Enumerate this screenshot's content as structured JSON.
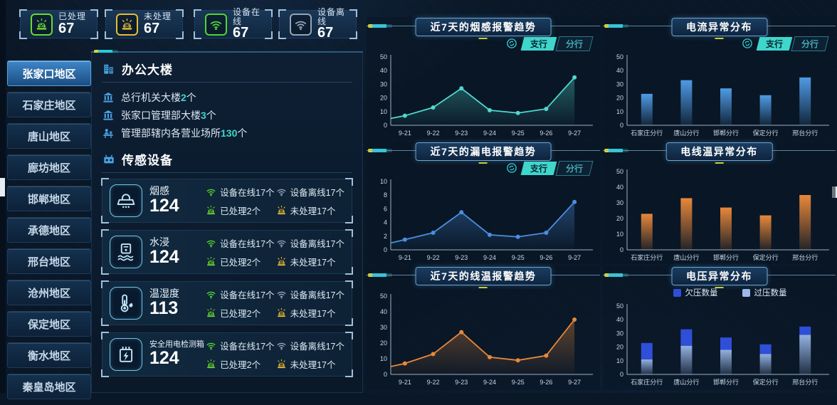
{
  "stats": {
    "items": [
      {
        "label": "已处理",
        "value": "67",
        "icon": "alarm-check-icon",
        "color": "#6cd832"
      },
      {
        "label": "未处理",
        "value": "67",
        "icon": "alarm-x-icon",
        "color": "#e8bc30"
      },
      {
        "label": "设备在线",
        "value": "67",
        "icon": "wifi-online-icon",
        "color": "#52d433"
      },
      {
        "label": "设备离线",
        "value": "67",
        "icon": "wifi-offline-icon",
        "color": "#97a4b4"
      }
    ]
  },
  "sidebar": {
    "items": [
      {
        "label": "张家口地区",
        "selected": true
      },
      {
        "label": "石家庄地区",
        "selected": false
      },
      {
        "label": "唐山地区",
        "selected": false
      },
      {
        "label": "廊坊地区",
        "selected": false
      },
      {
        "label": "邯郸地区",
        "selected": false
      },
      {
        "label": "承德地区",
        "selected": false
      },
      {
        "label": "邢台地区",
        "selected": false
      },
      {
        "label": "沧州地区",
        "selected": false
      },
      {
        "label": "保定地区",
        "selected": false
      },
      {
        "label": "衡水地区",
        "selected": false
      },
      {
        "label": "秦皇岛地区",
        "selected": false
      }
    ]
  },
  "building_panel": {
    "title": "办公大楼",
    "rows": [
      {
        "text": "总行机关大楼",
        "count": "2",
        "unit": "个"
      },
      {
        "text": "张家口管理部大楼",
        "count": "3",
        "unit": "个"
      },
      {
        "text": "管理部辖内各营业场所",
        "count": "130",
        "unit": "个"
      }
    ]
  },
  "sensor_panel": {
    "title": "传感设备",
    "labels": {
      "online": "设备在线",
      "offline": "设备离线",
      "handled": "已处理",
      "unhandled": "未处理",
      "unit": "个"
    },
    "sensors": [
      {
        "name": "烟感",
        "total": "124",
        "online": "17",
        "offline": "17",
        "handled": "2",
        "unhandled": "17"
      },
      {
        "name": "水浸",
        "total": "124",
        "online": "17",
        "offline": "17",
        "handled": "2",
        "unhandled": "17"
      },
      {
        "name": "温湿度",
        "total": "113",
        "online": "17",
        "offline": "17",
        "handled": "2",
        "unhandled": "17"
      },
      {
        "name": "安全用电检测箱",
        "total": "124",
        "online": "17",
        "offline": "17",
        "handled": "2",
        "unhandled": "17"
      }
    ]
  },
  "controls": {
    "switch_tabs": [
      "支行",
      "分行"
    ],
    "active_tab": "支行"
  },
  "colors": {
    "accent_teal": "#3fd6cc",
    "accent_yellow": "#e8bc30",
    "accent_green": "#52d433",
    "accent_blue": "#4f9be4",
    "accent_orange": "#e8883a",
    "stacked_dark_blue": "#2f4fd8",
    "stacked_light_blue": "#9bb9ea"
  },
  "chart_data": [
    {
      "type": "line",
      "title": "近7天的烟感报警趋势",
      "color": "#4fd8cf",
      "categories": [
        "9-21",
        "9-22",
        "9-23",
        "9-24",
        "9-25",
        "9-26",
        "9-27"
      ],
      "values": [
        7,
        13,
        27,
        11,
        9,
        12,
        35
      ],
      "axis_start_value": 5,
      "ylim": [
        0,
        50
      ],
      "yticks": [
        0,
        10,
        20,
        30,
        40,
        50
      ],
      "area": true,
      "has_branch_toggle": true
    },
    {
      "type": "bar",
      "title": "电流异常分布",
      "color": "#4f9be4",
      "categories": [
        "石家庄分行",
        "唐山分行",
        "邯郸分行",
        "保定分行",
        "邢台分行"
      ],
      "values": [
        23,
        33,
        27,
        22,
        35
      ],
      "ylim": [
        0,
        50
      ],
      "yticks": [
        0,
        10,
        20,
        30,
        40,
        50
      ],
      "has_branch_toggle": true
    },
    {
      "type": "line",
      "title": "近7天的漏电报警趋势",
      "color": "#4a8fe0",
      "categories": [
        "9-21",
        "9-22",
        "9-23",
        "9-24",
        "9-25",
        "9-26",
        "9-27"
      ],
      "values": [
        1.5,
        2.5,
        5.5,
        2.2,
        1.9,
        2.5,
        7
      ],
      "axis_start_value": 1,
      "ylim": [
        0,
        10
      ],
      "yticks": [
        0,
        2,
        4,
        6,
        8,
        10
      ],
      "area": true,
      "has_branch_toggle": true
    },
    {
      "type": "bar",
      "title": "电线温异常分布",
      "color": "#e8883a",
      "categories": [
        "石家庄分行",
        "唐山分行",
        "邯郸分行",
        "保定分行",
        "邢台分行"
      ],
      "values": [
        23,
        33,
        27,
        22,
        35
      ],
      "ylim": [
        0,
        50
      ],
      "yticks": [
        0,
        10,
        20,
        30,
        40,
        50
      ],
      "has_branch_toggle": false
    },
    {
      "type": "line",
      "title": "近7天的线温报警趋势",
      "color": "#e8883a",
      "categories": [
        "9-21",
        "9-22",
        "9-23",
        "9-24",
        "9-25",
        "9-26",
        "9-27"
      ],
      "values": [
        7,
        13,
        27,
        11,
        9,
        12,
        35
      ],
      "axis_start_value": 5,
      "ylim": [
        0,
        50
      ],
      "yticks": [
        0,
        10,
        20,
        30,
        40,
        50
      ],
      "area": true,
      "has_branch_toggle": false
    },
    {
      "type": "stacked",
      "title": "电压异常分布",
      "categories": [
        "石家庄分行",
        "唐山分行",
        "邯郸分行",
        "保定分行",
        "邢台分行"
      ],
      "series": [
        {
          "name": "欠压数量",
          "color": "#2f4fd8",
          "values": [
            12,
            12,
            9,
            7,
            6
          ]
        },
        {
          "name": "过压数量",
          "color": "#9bb9ea",
          "values": [
            11,
            21,
            18,
            15,
            29
          ]
        }
      ],
      "stack_bottom": "过压数量",
      "ylim": [
        0,
        50
      ],
      "yticks": [
        0,
        10,
        20,
        30,
        40,
        50
      ],
      "legend": true
    }
  ]
}
